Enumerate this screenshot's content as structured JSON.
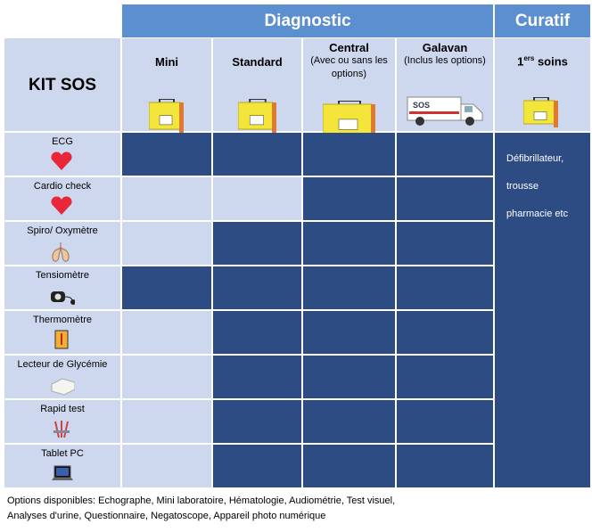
{
  "header": {
    "group_diagnostic": "Diagnostic",
    "group_curatif": "Curatif",
    "kit": "KIT SOS"
  },
  "columns": [
    {
      "name": "Mini"
    },
    {
      "name": "Standard"
    },
    {
      "name": "Central",
      "note": "(Avec ou sans les options)"
    },
    {
      "name": "Galavan",
      "note": "(Inclus les options)"
    }
  ],
  "curatif_column": {
    "number": "1",
    "sup": "ers",
    "rest": "soins"
  },
  "rows": [
    {
      "label": "ECG",
      "included": [
        true,
        true,
        true,
        true
      ]
    },
    {
      "label": "Cardio check",
      "included": [
        false,
        false,
        true,
        true
      ]
    },
    {
      "label": "Spiro/ Oxymètre",
      "included": [
        false,
        true,
        true,
        true
      ]
    },
    {
      "label": "Tensiomètre",
      "included": [
        true,
        true,
        true,
        true
      ]
    },
    {
      "label": "Thermomètre",
      "included": [
        false,
        true,
        true,
        true
      ]
    },
    {
      "label": "Lecteur de Glycémie",
      "included": [
        false,
        true,
        true,
        true
      ]
    },
    {
      "label": "Rapid test",
      "included": [
        false,
        true,
        true,
        true
      ]
    },
    {
      "label": "Tablet PC",
      "included": [
        false,
        true,
        true,
        true
      ]
    }
  ],
  "curatif_text": [
    "Défibrillateur,",
    "trousse",
    "pharmacie etc"
  ],
  "footer": [
    "Options disponibles: Echographe, Mini laboratoire, Hématologie, Audiométrie, Test visuel,",
    "Analyses d'urine, Questionnaire, Negatoscope, Appareil photo numérique"
  ]
}
